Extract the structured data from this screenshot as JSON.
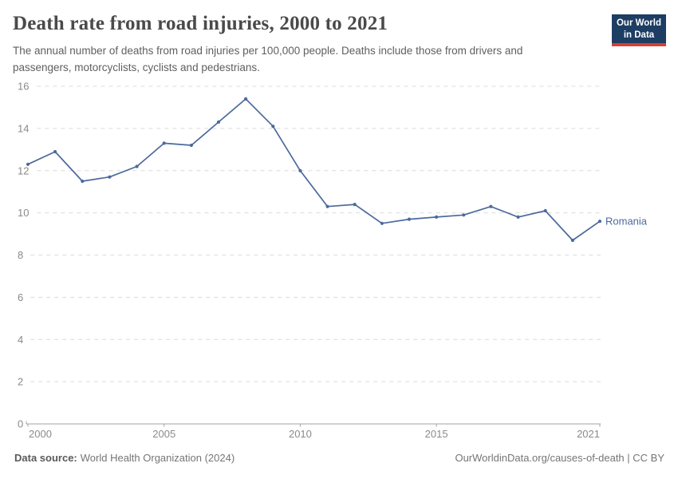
{
  "header": {
    "title": "Death rate from road injuries, 2000 to 2021",
    "subtitle": "The annual number of deaths from road injuries per 100,000 people. Deaths include those from drivers and passengers, motorcyclists, cyclists and pedestrians.",
    "logo": {
      "line1": "Our World",
      "line2": "in Data"
    }
  },
  "chart_data": {
    "type": "line",
    "title": "Death rate from road injuries, 2000 to 2021",
    "xlabel": "",
    "ylabel": "",
    "x": [
      2000,
      2001,
      2002,
      2003,
      2004,
      2005,
      2006,
      2007,
      2008,
      2009,
      2010,
      2011,
      2012,
      2013,
      2014,
      2015,
      2016,
      2017,
      2018,
      2019,
      2020,
      2021
    ],
    "series": [
      {
        "name": "Romania",
        "color": "#4C6A9C",
        "values": [
          12.3,
          12.9,
          11.5,
          11.7,
          12.2,
          13.3,
          13.2,
          14.3,
          15.4,
          14.1,
          12.0,
          10.3,
          10.4,
          9.5,
          9.7,
          9.8,
          9.9,
          10.3,
          9.8,
          10.1,
          8.7,
          9.6
        ]
      }
    ],
    "ylim": [
      0,
      16
    ],
    "yticks": [
      0,
      2,
      4,
      6,
      8,
      10,
      12,
      14,
      16
    ],
    "xticks": [
      2000,
      2005,
      2010,
      2015,
      2021
    ],
    "grid": "horizontal-dashed",
    "legend": "end-of-line-label"
  },
  "footer": {
    "source_label": "Data source:",
    "source_value": "World Health Organization (2024)",
    "attribution": "OurWorldinData.org/causes-of-death | CC BY"
  },
  "colors": {
    "accent": "#4C6A9C",
    "logo_bg": "#1d3d63",
    "logo_stripe": "#d93d32",
    "grid": "#dcdcdc",
    "axis": "#a3a3a3",
    "tick_label": "#8a8a8a",
    "title": "#4a4a4a",
    "subtitle": "#5f5f5f",
    "footer": "#757575"
  }
}
